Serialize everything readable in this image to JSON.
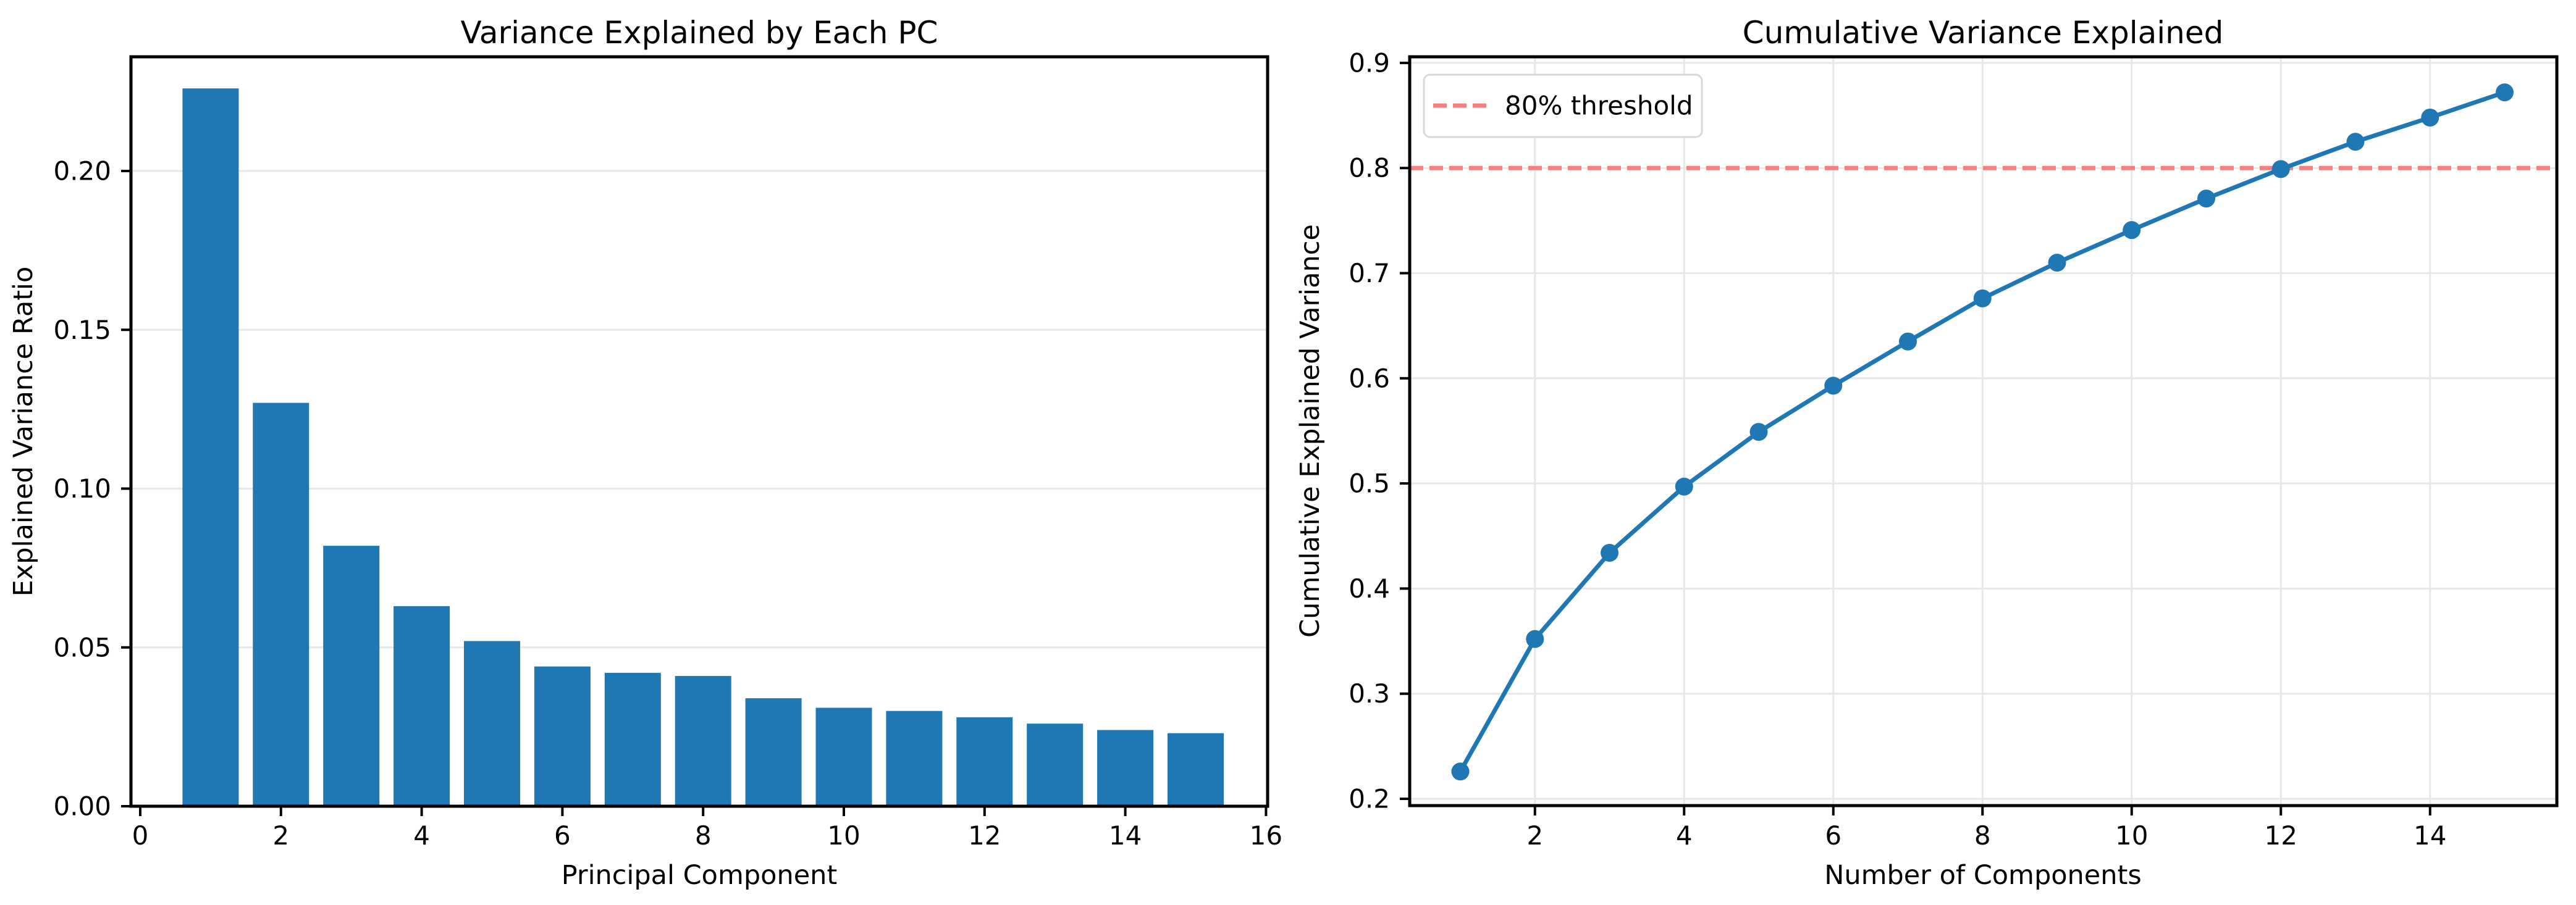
{
  "figure": {
    "background": "#ffffff",
    "text_color": "#000000",
    "grid_color": "#e7e7e7",
    "spine_color": "#000000"
  },
  "chart_data": [
    {
      "type": "bar",
      "title": "Variance Explained by Each PC",
      "xlabel": "Principal Component",
      "ylabel": "Explained Variance Ratio",
      "categories": [
        1,
        2,
        3,
        4,
        5,
        6,
        7,
        8,
        9,
        10,
        11,
        12,
        13,
        14,
        15
      ],
      "values": [
        0.226,
        0.127,
        0.082,
        0.063,
        0.052,
        0.044,
        0.042,
        0.041,
        0.034,
        0.031,
        0.03,
        0.028,
        0.026,
        0.024,
        0.023
      ],
      "bar_color": "#1f77b4",
      "bar_width": 0.8,
      "xlim": [
        -0.13,
        16.03
      ],
      "ylim": [
        0,
        0.236
      ],
      "xticklabels": [
        "0",
        "2",
        "4",
        "6",
        "8",
        "10",
        "12",
        "14",
        "16"
      ],
      "yticklabels": [
        "0.00",
        "0.05",
        "0.10",
        "0.15",
        "0.20"
      ],
      "grid": "y",
      "legend": null
    },
    {
      "type": "line",
      "title": "Cumulative Variance Explained",
      "xlabel": "Number of Components",
      "ylabel": "Cumulative Explained Variance",
      "x": [
        1,
        2,
        3,
        4,
        5,
        6,
        7,
        8,
        9,
        10,
        11,
        12,
        13,
        14,
        15
      ],
      "values": [
        0.226,
        0.352,
        0.434,
        0.497,
        0.549,
        0.593,
        0.635,
        0.676,
        0.71,
        0.741,
        0.771,
        0.799,
        0.825,
        0.848,
        0.872
      ],
      "line_color": "#1f77b4",
      "marker": "circle",
      "xlim": [
        0.3,
        15.7
      ],
      "ylim": [
        0.194,
        0.906
      ],
      "xticklabels": [
        "2",
        "4",
        "6",
        "8",
        "10",
        "12",
        "14"
      ],
      "yticklabels": [
        "0.2",
        "0.3",
        "0.4",
        "0.5",
        "0.6",
        "0.7",
        "0.8",
        "0.9"
      ],
      "grid": "both",
      "threshold": {
        "value": 0.8,
        "color": "#f87f7f",
        "style": "dashed"
      },
      "legend": {
        "position": "upper left",
        "entries": [
          {
            "label": "80% threshold",
            "color": "#f87f7f",
            "line_style": "dashed"
          }
        ]
      }
    }
  ]
}
